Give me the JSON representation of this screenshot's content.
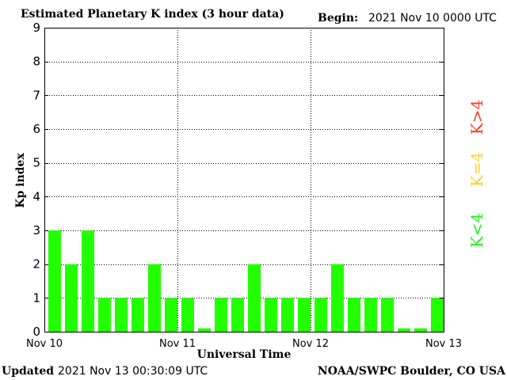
{
  "header": {
    "title": "Estimated Planetary K index (3 hour data)",
    "begin_label": "Begin:",
    "begin_value": "2021 Nov 10 0000 UTC"
  },
  "footer": {
    "updated_label": "Updated",
    "updated_value": "2021 Nov 13 00:30:09 UTC",
    "credit": "NOAA/SWPC Boulder, CO USA"
  },
  "legend": {
    "high": "K>4",
    "mid": "K=4",
    "low": "K<4"
  },
  "colors": {
    "low": "#22ff00",
    "mid": "#ffd21a",
    "high": "#ff3b1f",
    "grid": "#000000"
  },
  "chart_data": {
    "type": "bar",
    "xlabel": "Universal Time",
    "ylabel": "Kp index",
    "ylim": [
      0,
      9
    ],
    "yticks": [
      0,
      1,
      2,
      3,
      4,
      5,
      6,
      7,
      8,
      9
    ],
    "xtick_labels": [
      "Nov 10",
      "Nov 11",
      "Nov 12",
      "Nov 13"
    ],
    "bin_hours": 3,
    "grid": true,
    "values": [
      3,
      2,
      3,
      1,
      1,
      1,
      2,
      1,
      1,
      0.1,
      1,
      1,
      2,
      1,
      1,
      1,
      1,
      2,
      1,
      1,
      1,
      0.1,
      0.1,
      1
    ]
  }
}
